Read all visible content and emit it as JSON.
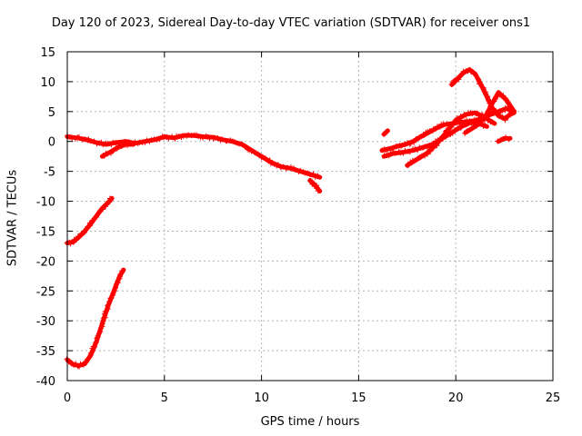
{
  "chart_data": {
    "type": "scatter",
    "title": "Day 120 of 2023, Sidereal Day-to-day VTEC variation (SDTVAR) for receiver ons1",
    "xlabel": "GPS time / hours",
    "ylabel": "SDTVAR / TECUs",
    "xlim": [
      0,
      25
    ],
    "ylim": [
      -40,
      15
    ],
    "xticks": [
      0,
      5,
      10,
      15,
      20,
      25
    ],
    "yticks": [
      15,
      10,
      5,
      0,
      -5,
      -10,
      -15,
      -20,
      -25,
      -30,
      -35,
      -40
    ],
    "grid": true,
    "marker_color": "#ff0000",
    "series": [
      {
        "name": "arc-low-deep",
        "x": [
          0,
          0.3,
          0.6,
          0.9,
          1.2,
          1.5,
          1.8,
          2.1,
          2.4,
          2.7,
          2.9
        ],
        "y": [
          -36.5,
          -37.3,
          -37.5,
          -37.2,
          -35.8,
          -33.5,
          -30.5,
          -27.5,
          -25,
          -22.5,
          -21.5
        ]
      },
      {
        "name": "arc-low-mid",
        "x": [
          0,
          0.3,
          0.6,
          0.9,
          1.2,
          1.5,
          1.8,
          2.1,
          2.3
        ],
        "y": [
          -17,
          -16.8,
          -16,
          -15,
          -13.8,
          -12.5,
          -11.2,
          -10.2,
          -9.5
        ]
      },
      {
        "name": "arc-day-main",
        "x": [
          0,
          0.5,
          1,
          1.5,
          2,
          2.5,
          3,
          3.5,
          4,
          4.5,
          5,
          5.5,
          6,
          6.5,
          7,
          7.5,
          8,
          8.5,
          9,
          9.5,
          10,
          10.5,
          11,
          11.5,
          12,
          12.5,
          13
        ],
        "y": [
          0.8,
          0.6,
          0.3,
          -0.2,
          -0.5,
          -0.2,
          0,
          -0.3,
          0,
          0.3,
          0.8,
          0.6,
          1,
          1,
          0.8,
          0.7,
          0.3,
          0,
          -0.5,
          -1.5,
          -2.5,
          -3.5,
          -4.2,
          -4.5,
          -5,
          -5.5,
          -6
        ]
      },
      {
        "name": "arc-day-branch",
        "x": [
          1.8,
          2.2,
          2.6,
          3,
          3.4
        ],
        "y": [
          -2.5,
          -1.8,
          -1,
          -0.5,
          -0.5
        ]
      },
      {
        "name": "arc-evening-lower",
        "x": [
          12.5,
          12.8,
          13
        ],
        "y": [
          -6.5,
          -7.5,
          -8.3
        ]
      },
      {
        "name": "arc-evening-1",
        "x": [
          16.2,
          16.6,
          17,
          17.4,
          17.8,
          18.2,
          18.6,
          19,
          19.4,
          19.8,
          20.2,
          20.6,
          21,
          21.4,
          21.8,
          22.2,
          22.6,
          23
        ],
        "y": [
          -1.5,
          -1.2,
          -0.8,
          -0.5,
          0,
          0.8,
          1.5,
          2.2,
          2.8,
          3,
          3.2,
          3.3,
          3.5,
          4,
          4.5,
          5,
          5.5,
          5
        ]
      },
      {
        "name": "arc-evening-2",
        "x": [
          16.3,
          16.8,
          17.3,
          17.8,
          18.3,
          18.8,
          19.3,
          19.8,
          20.3,
          20.8,
          21.2,
          21.6
        ],
        "y": [
          -2.5,
          -2,
          -1.8,
          -1.5,
          -1,
          -0.5,
          0.5,
          1.5,
          2.5,
          3.2,
          3,
          2.5
        ]
      },
      {
        "name": "arc-evening-3",
        "x": [
          17.5,
          18,
          18.5,
          19,
          19.5,
          20,
          20.5,
          21,
          21.5,
          22
        ],
        "y": [
          -4,
          -3,
          -2,
          -0.5,
          1.5,
          3.5,
          4.5,
          4.8,
          4,
          3
        ]
      },
      {
        "name": "arc-evening-peak",
        "x": [
          19.8,
          20.1,
          20.4,
          20.7,
          21,
          21.3,
          21.6,
          21.9,
          22.2,
          22.5,
          22.8,
          23
        ],
        "y": [
          9.5,
          10.5,
          11.5,
          12,
          11.3,
          9.5,
          7.5,
          5.5,
          4.3,
          3.8,
          4.5,
          4.8
        ]
      },
      {
        "name": "arc-evening-4",
        "x": [
          20.5,
          21,
          21.5,
          21.9,
          22.2,
          22.6,
          23
        ],
        "y": [
          1.5,
          2.5,
          4,
          6.5,
          8.2,
          7,
          5
        ]
      },
      {
        "name": "arc-evening-5",
        "x": [
          22.2,
          22.5,
          22.8
        ],
        "y": [
          0,
          0.5,
          0.5
        ]
      },
      {
        "name": "arc-evening-6",
        "x": [
          16.3,
          16.5
        ],
        "y": [
          1.2,
          1.8
        ]
      }
    ]
  }
}
